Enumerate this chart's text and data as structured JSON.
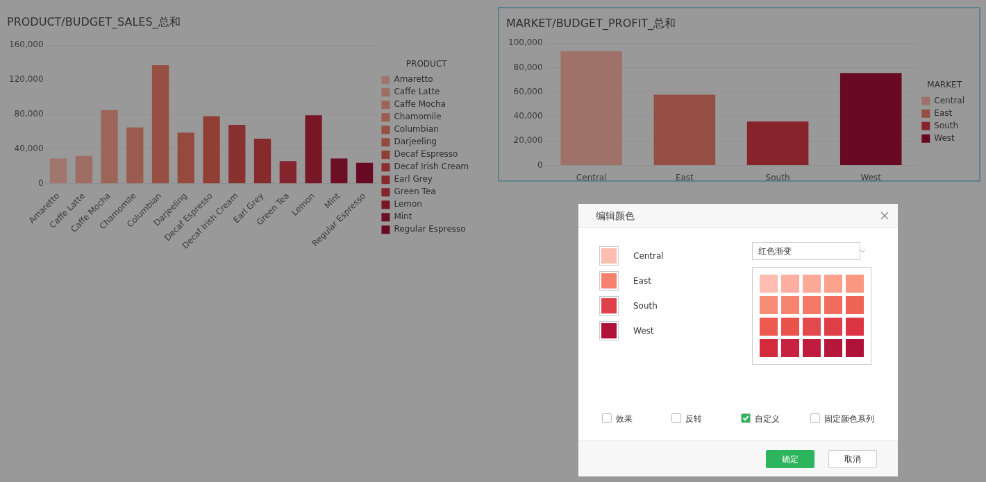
{
  "chart_data": [
    {
      "type": "bar",
      "title": "PRODUCT/BUDGET_SALES_总和",
      "legend_title": "PRODUCT",
      "legend": "right",
      "grid": "y",
      "categories": [
        "Amaretto",
        "Caffe Latte",
        "Caffe Mocha",
        "Chamomile",
        "Columbian",
        "Darjeeling",
        "Decaf Espresso",
        "Decaf Irish Cream",
        "Earl Grey",
        "Green Tea",
        "Lemon",
        "Mint",
        "Regular Espresso"
      ],
      "series": [
        {
          "name": "Amaretto",
          "color": "#a0766d",
          "values": [
            29000,
            null,
            null,
            null,
            null,
            null,
            null,
            null,
            null,
            null,
            null,
            null,
            null
          ]
        },
        {
          "name": "Caffe Latte",
          "color": "#9e6d63",
          "values": [
            null,
            32000,
            null,
            null,
            null,
            null,
            null,
            null,
            null,
            null,
            null,
            null,
            null
          ]
        },
        {
          "name": "Caffe Mocha",
          "color": "#9b6558",
          "values": [
            null,
            null,
            85000,
            null,
            null,
            null,
            null,
            null,
            null,
            null,
            null,
            null,
            null
          ]
        },
        {
          "name": "Chamomile",
          "color": "#9a5c4e",
          "values": [
            null,
            null,
            null,
            65000,
            null,
            null,
            null,
            null,
            null,
            null,
            null,
            null,
            null
          ]
        },
        {
          "name": "Columbian",
          "color": "#964f43",
          "values": [
            null,
            null,
            null,
            null,
            137000,
            null,
            null,
            null,
            null,
            null,
            null,
            null,
            null
          ]
        },
        {
          "name": "Darjeeling",
          "color": "#944a3c",
          "values": [
            null,
            null,
            null,
            null,
            null,
            59000,
            null,
            null,
            null,
            null,
            null,
            null,
            null
          ]
        },
        {
          "name": "Decaf Espresso",
          "color": "#913e35",
          "values": [
            null,
            null,
            null,
            null,
            null,
            null,
            78000,
            null,
            null,
            null,
            null,
            null,
            null
          ]
        },
        {
          "name": "Decaf Irish Cream",
          "color": "#8b3030",
          "values": [
            null,
            null,
            null,
            null,
            null,
            null,
            null,
            68000,
            null,
            null,
            null,
            null,
            null
          ]
        },
        {
          "name": "Earl Grey",
          "color": "#872a2e",
          "values": [
            null,
            null,
            null,
            null,
            null,
            null,
            null,
            null,
            52000,
            null,
            null,
            null,
            null
          ]
        },
        {
          "name": "Green Tea",
          "color": "#85242d",
          "values": [
            null,
            null,
            null,
            null,
            null,
            null,
            null,
            null,
            null,
            26000,
            null,
            null,
            null
          ]
        },
        {
          "name": "Lemon",
          "color": "#781726",
          "values": [
            null,
            null,
            null,
            null,
            null,
            null,
            null,
            null,
            null,
            null,
            79000,
            null,
            null
          ]
        },
        {
          "name": "Mint",
          "color": "#6d0f24",
          "values": [
            null,
            null,
            null,
            null,
            null,
            null,
            null,
            null,
            null,
            null,
            null,
            29000,
            null
          ]
        },
        {
          "name": "Regular Espresso",
          "color": "#680a24",
          "values": [
            null,
            null,
            null,
            null,
            null,
            null,
            null,
            null,
            null,
            null,
            null,
            null,
            24000
          ]
        }
      ],
      "ylim": [
        0,
        160000
      ],
      "yticks": [
        {
          "value": 0,
          "label": "0"
        },
        {
          "value": 40000,
          "label": "40,000"
        },
        {
          "value": 80000,
          "label": "80,000"
        },
        {
          "value": 120000,
          "label": "120,000"
        },
        {
          "value": 160000,
          "label": "160,000"
        }
      ]
    },
    {
      "type": "bar",
      "title": "MARKET/BUDGET_PROFIT_总和",
      "legend_title": "MARKET",
      "legend": "right",
      "grid": "y",
      "categories": [
        "Central",
        "East",
        "South",
        "West"
      ],
      "series": [
        {
          "name": "Central",
          "color": "#9e7169",
          "values": [
            93300,
            null,
            null,
            null
          ]
        },
        {
          "name": "East",
          "color": "#944e44",
          "values": [
            null,
            57900,
            null,
            null
          ]
        },
        {
          "name": "South",
          "color": "#86232b",
          "values": [
            null,
            null,
            35900,
            null
          ]
        },
        {
          "name": "West",
          "color": "#670a22",
          "values": [
            null,
            null,
            null,
            75600
          ]
        }
      ],
      "ylim": [
        0,
        100000
      ],
      "yticks": [
        {
          "value": 0,
          "label": "0"
        },
        {
          "value": 20000,
          "label": "20,000"
        },
        {
          "value": 40000,
          "label": "40,000"
        },
        {
          "value": 60000,
          "label": "60,000"
        },
        {
          "value": 80000,
          "label": "80,000"
        },
        {
          "value": 100000,
          "label": "100,000"
        }
      ]
    },
    {
      "type": "other",
      "title": "编辑颜色",
      "annotations": [
        "Central",
        "East",
        "South",
        "West",
        "红色渐变",
        "效果",
        "反转",
        "自定义",
        "固定颜色系列",
        "确定",
        "取消"
      ]
    }
  ]
}
